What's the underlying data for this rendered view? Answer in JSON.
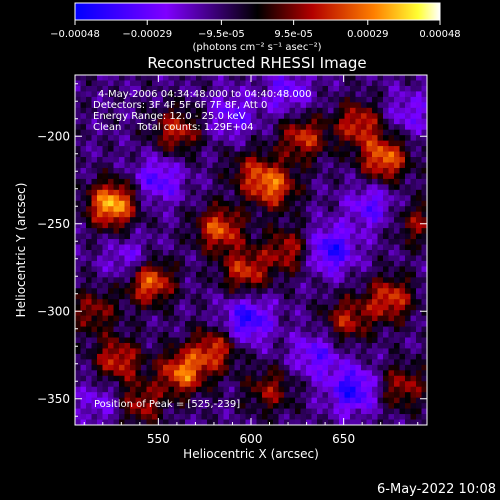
{
  "chart_data": {
    "type": "heatmap",
    "title": "Reconstructed RHESSI Image",
    "xlabel": "Heliocentric X (arcsec)",
    "ylabel": "Heliocentric Y (arcsec)",
    "xlim": [
      505,
      695
    ],
    "ylim": [
      -365,
      -165
    ],
    "x_ticks": [
      550,
      600,
      650
    ],
    "y_ticks": [
      -200,
      -250,
      -300,
      -350
    ],
    "colorbar": {
      "ticks": [
        -0.00048,
        -0.00029,
        -9.5e-05,
        9.5e-05,
        0.00029,
        0.00048
      ],
      "tick_labels": [
        "-0.00048",
        "-0.00029",
        "-9.5e-05",
        "9.5e-05",
        "0.00029",
        "0.00048"
      ],
      "range": [
        -0.00048,
        0.00048
      ],
      "unit_label": "(photons cm⁻² s⁻¹ asec⁻²)"
    },
    "annotations": [
      "4-May-2006 04:34:48.000 to 04:40:48.000",
      "Detectors: 3F 4F 5F 6F 7F 8F, Att 0",
      "Energy Range: 12.0 - 25.0 keV",
      "Clean     Total counts: 1.29E+04"
    ],
    "peak_label": "Position of Peak = [525,-239]",
    "peak": [
      525,
      -239
    ],
    "blobs": [
      {
        "x": 525,
        "y": -239,
        "v": 0.00048
      },
      {
        "x": 545,
        "y": -283,
        "v": 0.0004
      },
      {
        "x": 583,
        "y": -253,
        "v": 0.00035
      },
      {
        "x": 612,
        "y": -229,
        "v": 0.00034
      },
      {
        "x": 672,
        "y": -213,
        "v": 0.00038
      },
      {
        "x": 658,
        "y": -193,
        "v": 0.0003
      },
      {
        "x": 628,
        "y": -201,
        "v": 0.0003
      },
      {
        "x": 560,
        "y": -197,
        "v": 0.00028
      },
      {
        "x": 597,
        "y": -277,
        "v": 0.0003
      },
      {
        "x": 620,
        "y": -265,
        "v": 0.00026
      },
      {
        "x": 528,
        "y": -328,
        "v": 0.0003
      },
      {
        "x": 563,
        "y": -335,
        "v": 0.00038
      },
      {
        "x": 580,
        "y": -322,
        "v": 0.0003
      },
      {
        "x": 652,
        "y": -305,
        "v": 0.00026
      },
      {
        "x": 675,
        "y": -293,
        "v": 0.00032
      },
      {
        "x": 682,
        "y": -343,
        "v": 0.00024
      },
      {
        "x": 540,
        "y": -353,
        "v": 0.00025
      },
      {
        "x": 610,
        "y": -345,
        "v": 0.00022
      },
      {
        "x": 600,
        "y": -220,
        "v": 0.0002
      },
      {
        "x": 690,
        "y": -250,
        "v": 0.0002
      },
      {
        "x": 515,
        "y": -300,
        "v": 0.00022
      },
      {
        "x": 635,
        "y": -325,
        "v": -0.0002
      },
      {
        "x": 643,
        "y": -265,
        "v": -0.0003
      },
      {
        "x": 598,
        "y": -305,
        "v": -0.0003
      },
      {
        "x": 655,
        "y": -345,
        "v": -0.0003
      },
      {
        "x": 550,
        "y": -225,
        "v": -0.00022
      },
      {
        "x": 535,
        "y": -272,
        "v": -0.00018
      },
      {
        "x": 665,
        "y": -240,
        "v": -0.0002
      },
      {
        "x": 620,
        "y": -175,
        "v": -0.00018
      },
      {
        "x": 685,
        "y": -187,
        "v": -0.00015
      },
      {
        "x": 590,
        "y": -188,
        "v": -0.00018
      },
      {
        "x": 520,
        "y": -352,
        "v": -0.00015
      }
    ]
  },
  "footer_date": "6-May-2022 10:08",
  "colors": {
    "background": "#000000",
    "text": "#ffffff"
  }
}
